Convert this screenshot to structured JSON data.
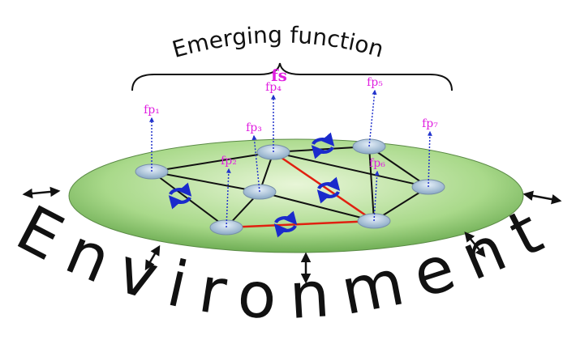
{
  "title": "Emerging function",
  "function_label": "fs",
  "nodes": [
    {
      "label": "fp₁"
    },
    {
      "label": "fp₂"
    },
    {
      "label": "fp₃"
    },
    {
      "label": "fp₄"
    },
    {
      "label": "fp₅"
    },
    {
      "label": "fp₆"
    },
    {
      "label": "fp₇"
    }
  ],
  "environment": "Environment"
}
